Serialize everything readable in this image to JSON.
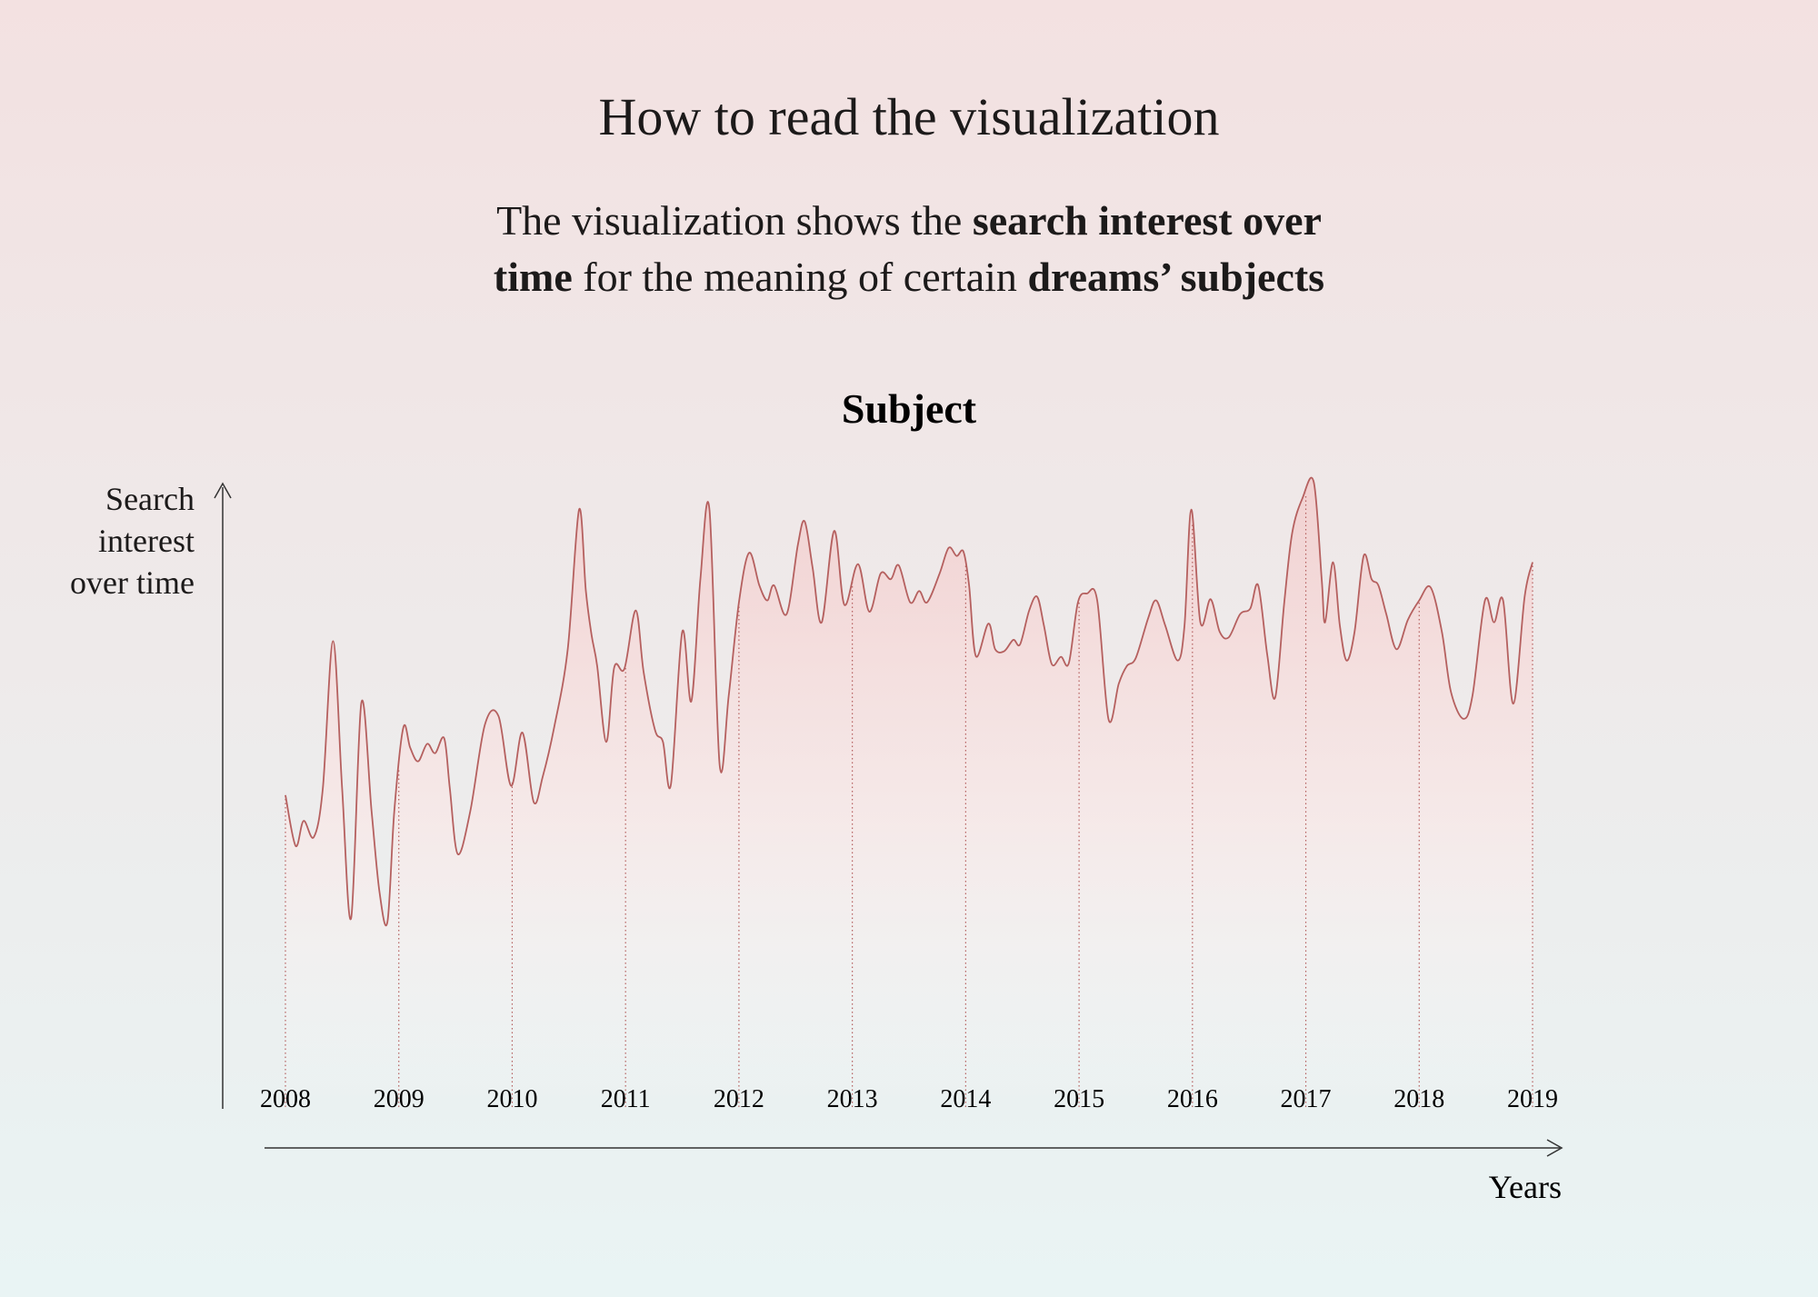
{
  "header": {
    "title": "How to read the visualization",
    "subtitle_lines": [
      [
        {
          "text": "The visualization shows the ",
          "bold": false
        },
        {
          "text": "search interest over",
          "bold": true
        }
      ],
      [
        {
          "text": "time",
          "bold": true
        },
        {
          "text": " for the meaning of certain ",
          "bold": false
        },
        {
          "text": "dreams’ subjects",
          "bold": true
        }
      ]
    ]
  },
  "chart_data": {
    "type": "line",
    "title": "Subject",
    "ylabel": "Search interest over time",
    "xlabel": "Years",
    "color": "#b5605f",
    "xlim": [
      2008,
      2019
    ],
    "xticks": [
      2008,
      2009,
      2010,
      2011,
      2012,
      2013,
      2014,
      2015,
      2016,
      2017,
      2018,
      2019
    ],
    "ylim": [
      0,
      100
    ],
    "x": [
      2008.0,
      2008.09,
      2008.16,
      2008.25,
      2008.33,
      2008.42,
      2008.5,
      2008.58,
      2008.67,
      2008.76,
      2008.83,
      2008.9,
      2008.96,
      2009.04,
      2009.1,
      2009.17,
      2009.25,
      2009.32,
      2009.4,
      2009.45,
      2009.52,
      2009.63,
      2009.76,
      2009.88,
      2009.99,
      2010.09,
      2010.19,
      2010.27,
      2010.37,
      2010.49,
      2010.59,
      2010.65,
      2010.7,
      2010.75,
      2010.83,
      2010.9,
      2010.99,
      2011.09,
      2011.16,
      2011.26,
      2011.33,
      2011.4,
      2011.5,
      2011.58,
      2011.66,
      2011.74,
      2011.83,
      2011.91,
      2012.0,
      2012.09,
      2012.18,
      2012.25,
      2012.31,
      2012.42,
      2012.52,
      2012.58,
      2012.65,
      2012.73,
      2012.84,
      2012.93,
      2013.05,
      2013.15,
      2013.25,
      2013.34,
      2013.41,
      2013.51,
      2013.59,
      2013.66,
      2013.77,
      2013.85,
      2013.92,
      2013.98,
      2014.03,
      2014.09,
      2014.2,
      2014.26,
      2014.34,
      2014.42,
      2014.48,
      2014.56,
      2014.63,
      2014.69,
      2014.76,
      2014.84,
      2014.91,
      2014.99,
      2015.07,
      2015.16,
      2015.26,
      2015.35,
      2015.42,
      2015.5,
      2015.61,
      2015.68,
      2015.76,
      2015.87,
      2015.93,
      2015.99,
      2016.07,
      2016.16,
      2016.24,
      2016.32,
      2016.42,
      2016.51,
      2016.58,
      2016.66,
      2016.73,
      2016.81,
      2016.88,
      2016.97,
      2017.07,
      2017.14,
      2017.17,
      2017.24,
      2017.3,
      2017.36,
      2017.43,
      2017.51,
      2017.58,
      2017.64,
      2017.71,
      2017.8,
      2017.9,
      2018.0,
      2018.1,
      2018.2,
      2018.28,
      2018.39,
      2018.47,
      2018.58,
      2018.66,
      2018.74,
      2018.83,
      2018.93,
      2019.0
    ],
    "values": [
      49.8,
      41.7,
      45.7,
      43.1,
      50.9,
      74.4,
      50.9,
      30.2,
      64.6,
      47.2,
      34.3,
      29.6,
      47.2,
      60.6,
      57.4,
      55.2,
      58.0,
      56.5,
      58.9,
      50.9,
      40.4,
      47.2,
      61.1,
      62.4,
      51.3,
      59.8,
      48.7,
      52.8,
      60.6,
      73.1,
      95.4,
      82.4,
      75.4,
      70.4,
      58.3,
      70.2,
      70.0,
      79.3,
      69.4,
      60.2,
      58.3,
      51.5,
      75.9,
      64.8,
      84.3,
      95.4,
      54.6,
      65.7,
      80.6,
      88.5,
      83.3,
      80.9,
      83.3,
      78.7,
      89.8,
      93.5,
      86.1,
      77.4,
      92.0,
      80.2,
      86.7,
      79.1,
      85.2,
      84.3,
      86.5,
      80.6,
      82.4,
      80.6,
      85.2,
      89.3,
      88.0,
      88.7,
      83.3,
      72.0,
      77.2,
      73.1,
      72.8,
      74.6,
      73.9,
      79.3,
      81.5,
      76.9,
      70.7,
      71.9,
      70.9,
      80.6,
      82.0,
      80.9,
      61.9,
      67.6,
      70.4,
      71.7,
      78.1,
      80.9,
      76.9,
      71.3,
      76.9,
      95.4,
      77.4,
      81.1,
      75.9,
      75.0,
      78.7,
      79.6,
      83.3,
      72.2,
      65.4,
      80.6,
      91.7,
      97.2,
      99.8,
      84.3,
      77.4,
      87.0,
      76.9,
      71.3,
      75.9,
      88.0,
      84.3,
      83.3,
      78.7,
      73.1,
      77.8,
      80.9,
      83.0,
      75.9,
      66.3,
      62.0,
      65.7,
      80.9,
      77.4,
      80.9,
      64.4,
      81.5,
      87.0
    ]
  }
}
